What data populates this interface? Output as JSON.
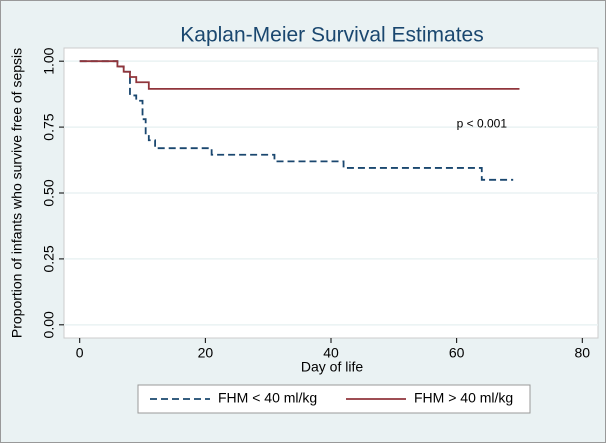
{
  "chart_data": {
    "type": "step",
    "title": "Kaplan-Meier Survival Estimates",
    "x_label": "Day of life",
    "y_label": "Proportion of infants who survive free of sepsis",
    "annotation": "p < 0.001",
    "annotation_x": 60,
    "annotation_y": 0.76,
    "xlim": [
      -2.5,
      82.5
    ],
    "xticks": [
      0,
      20,
      40,
      60,
      80
    ],
    "ylim": [
      -0.05,
      1.05
    ],
    "yticks": [
      {
        "value": 0,
        "label": "0.00"
      },
      {
        "value": 0.25,
        "label": "0.25"
      },
      {
        "value": 0.5,
        "label": "0.50"
      },
      {
        "value": 0.75,
        "label": "0.75"
      },
      {
        "value": 1,
        "label": "1.00"
      }
    ],
    "grid": true,
    "legend": "bottom",
    "series": [
      {
        "name": "FHM < 40 ml/kg",
        "color": "#1a476f",
        "dash": true,
        "x": [
          0,
          6,
          7,
          8,
          9,
          10,
          10.5,
          11,
          12,
          21,
          31,
          42,
          64,
          69
        ],
        "values": [
          1.0,
          0.98,
          0.96,
          0.87,
          0.85,
          0.78,
          0.72,
          0.7,
          0.67,
          0.645,
          0.62,
          0.595,
          0.55,
          0.55
        ]
      },
      {
        "name": "FHM > 40 ml/kg",
        "color": "#90353b",
        "dash": false,
        "x": [
          0,
          6,
          7,
          8,
          9,
          11,
          70
        ],
        "values": [
          1.0,
          0.98,
          0.96,
          0.94,
          0.92,
          0.895,
          0.895
        ]
      }
    ]
  }
}
